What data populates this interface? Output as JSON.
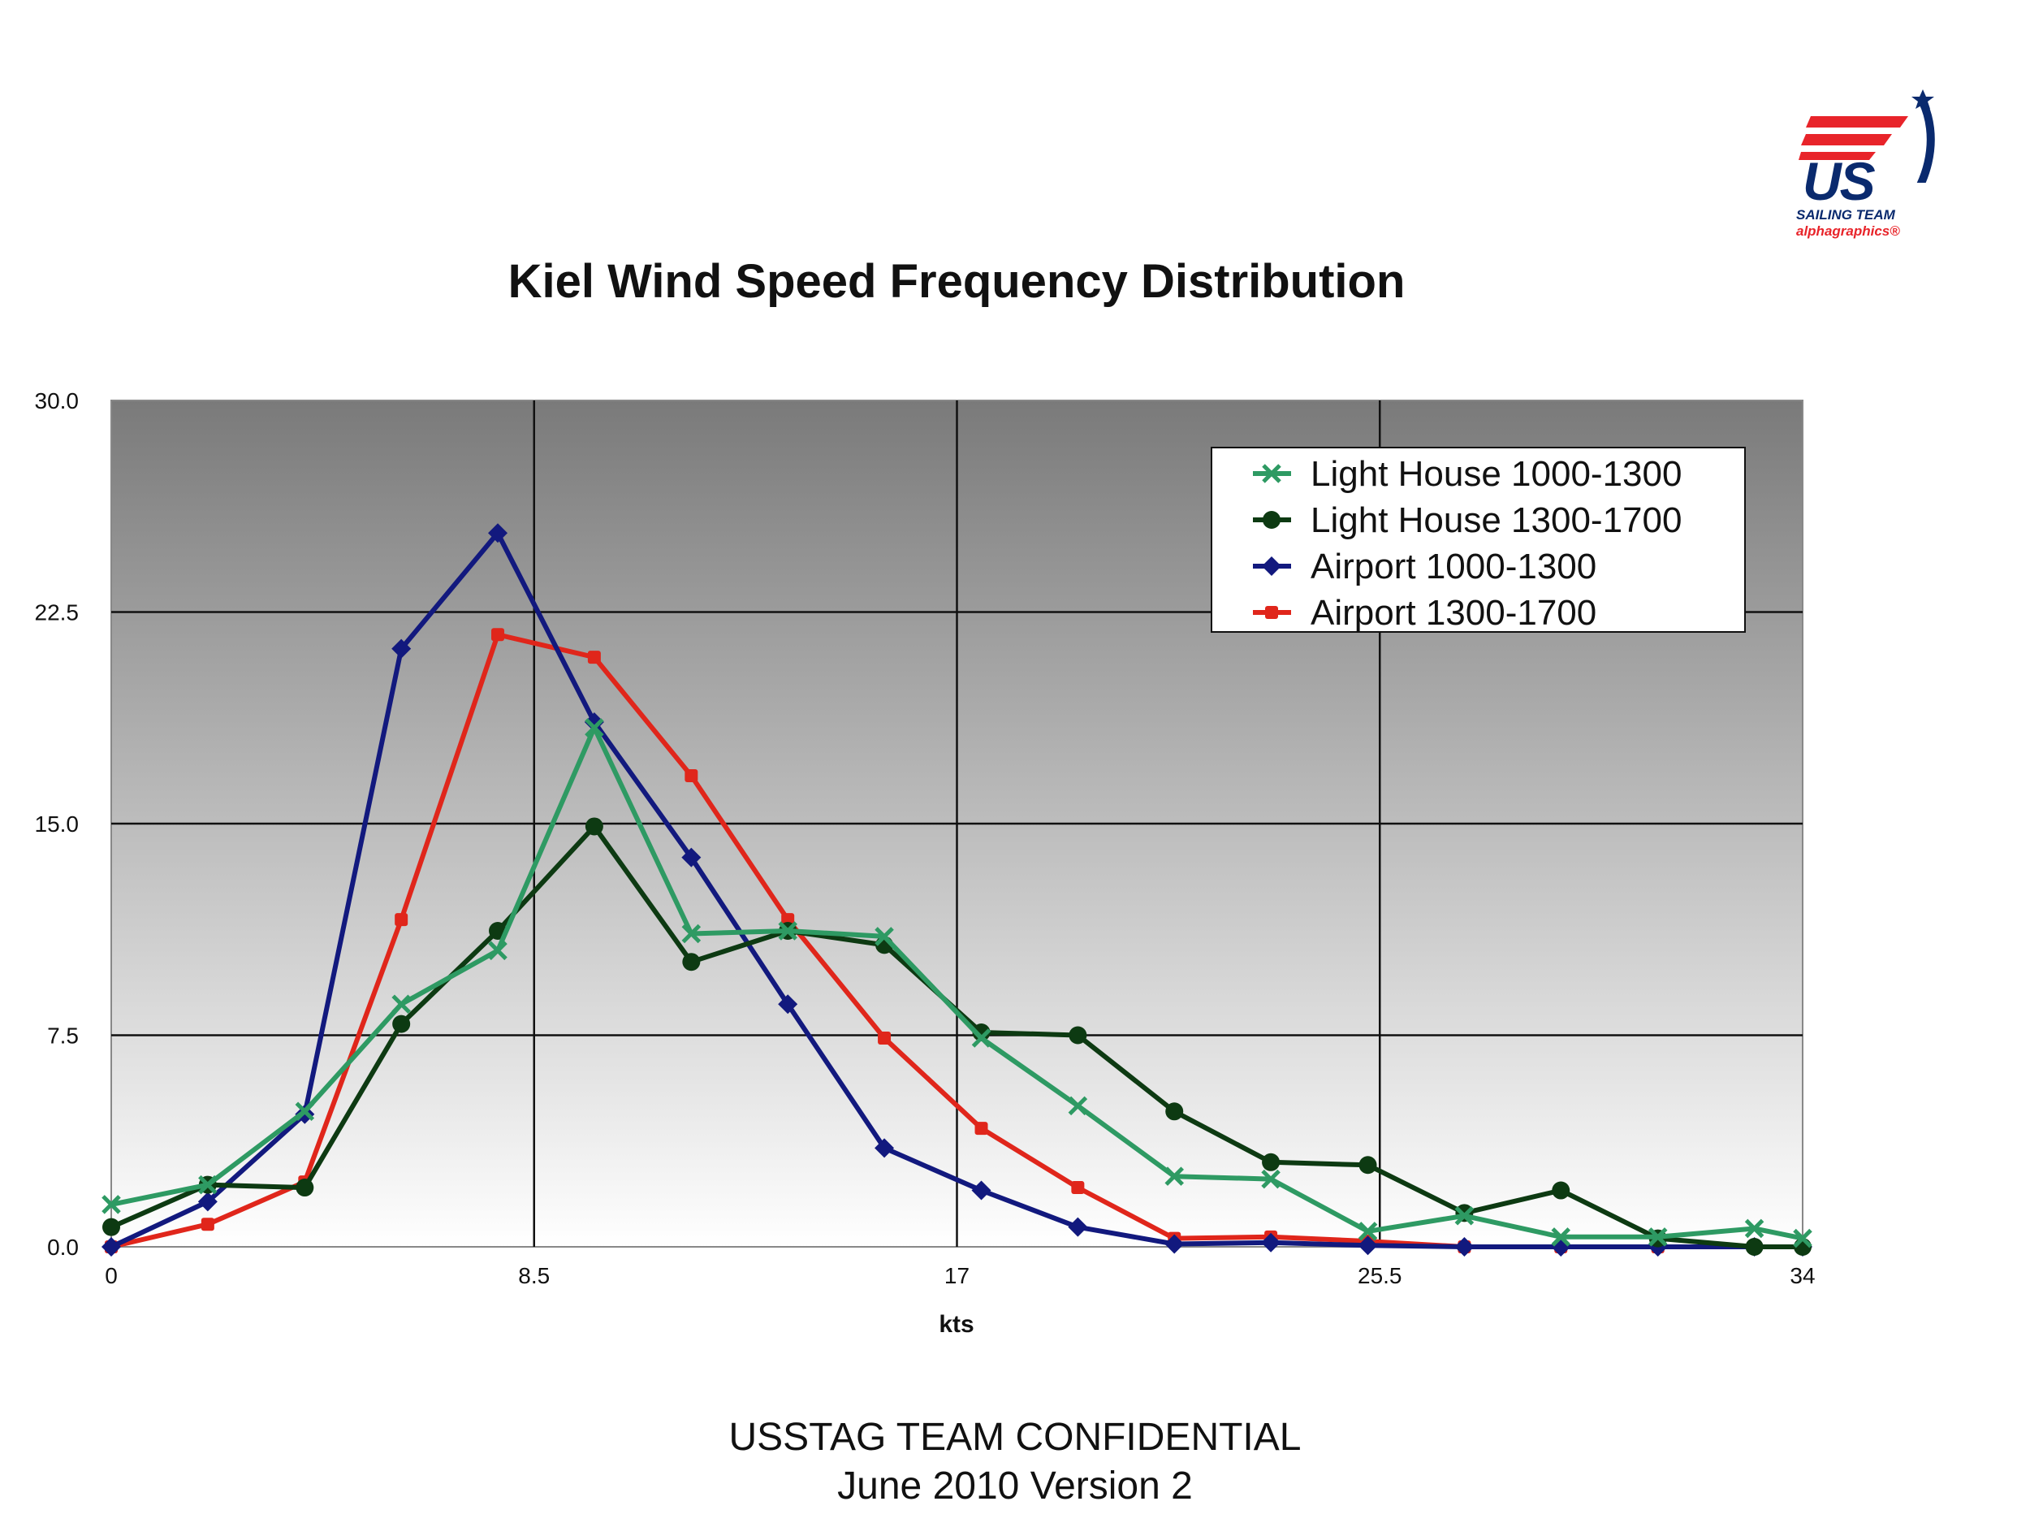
{
  "chart_data": {
    "type": "line",
    "title": "Kiel Wind Speed Frequency Distribution",
    "xlabel": "kts",
    "ylabel": "",
    "xlim": [
      0,
      34
    ],
    "ylim": [
      0,
      30
    ],
    "x_ticks": [
      "0",
      "8.5",
      "17",
      "25.5",
      "34"
    ],
    "y_ticks": [
      "0.0",
      "7.5",
      "15.0",
      "22.5",
      "30.0"
    ],
    "grid": true,
    "legend_position": "top-right",
    "x": [
      0,
      1.94,
      3.89,
      5.83,
      7.77,
      9.71,
      11.66,
      13.6,
      15.54,
      17.49,
      19.43,
      21.37,
      23.31,
      25.26,
      27.2,
      29.14,
      31.09,
      33.03,
      34
    ],
    "series": [
      {
        "name": "Light House 1000-1300",
        "color": "#2e9a63",
        "marker": "x",
        "values": [
          1.5,
          2.2,
          4.8,
          8.6,
          10.5,
          18.4,
          11.1,
          11.2,
          11.0,
          7.4,
          5.0,
          2.5,
          2.4,
          0.55,
          1.1,
          0.35,
          0.35,
          0.65,
          0.3
        ]
      },
      {
        "name": "Light House 1300-1700",
        "color": "#0d3a12",
        "marker": "circle",
        "values": [
          0.7,
          2.2,
          2.1,
          7.9,
          11.2,
          14.9,
          10.1,
          11.2,
          10.7,
          7.6,
          7.5,
          4.8,
          3.0,
          2.9,
          1.2,
          2.0,
          0.3,
          0.0,
          0.0
        ]
      },
      {
        "name": "Airport 1000-1300",
        "color": "#12197e",
        "marker": "diamond",
        "values": [
          0.0,
          1.6,
          4.7,
          21.2,
          25.3,
          18.6,
          13.8,
          8.6,
          3.5,
          2.0,
          0.7,
          0.1,
          0.15,
          0.05,
          0.0,
          0.0,
          0.0,
          0.0,
          0.0
        ]
      },
      {
        "name": "Airport 1300-1700",
        "color": "#e0261b",
        "marker": "square",
        "values": [
          0.0,
          0.8,
          2.3,
          11.6,
          21.7,
          20.9,
          16.7,
          11.6,
          7.4,
          4.2,
          2.1,
          0.3,
          0.35,
          0.2,
          0.0,
          0.0,
          0.0,
          0.0,
          0.0
        ]
      }
    ]
  },
  "logo": {
    "wordmark": "US",
    "team": "SAILING TEAM",
    "sponsor": "alphagraphics®",
    "colors": {
      "navy": "#0a2a6e",
      "red": "#e8242a"
    }
  },
  "footer": {
    "line1": "USSTAG TEAM CONFIDENTIAL",
    "line2": "June 2010 Version 2"
  }
}
